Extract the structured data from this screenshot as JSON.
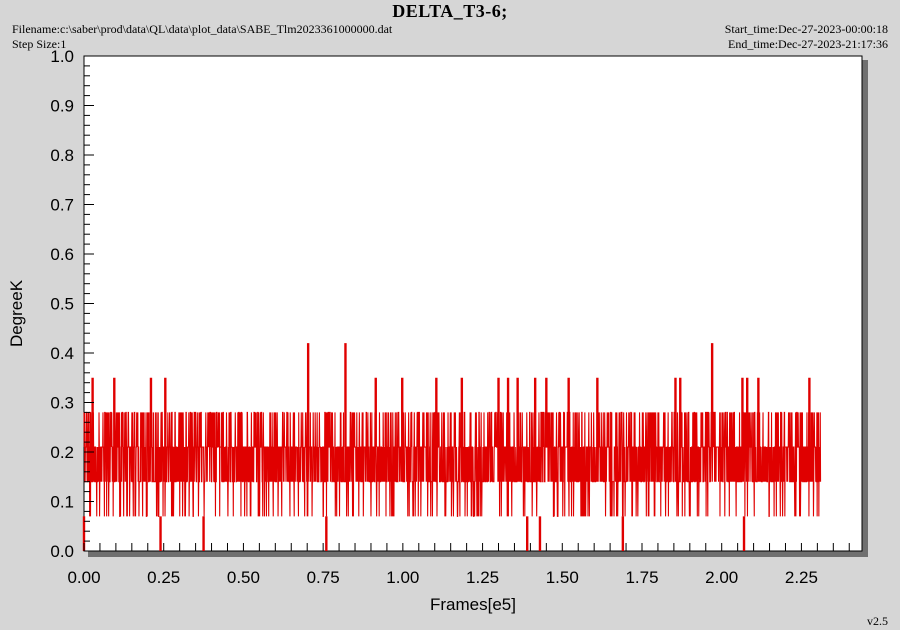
{
  "header": {
    "title": "DELTA_T3-6;",
    "filename": "Filename:c:\\saber\\prod\\data\\QL\\data\\plot_data\\SABE_Tlm2023361000000.dat",
    "step_size": "Step Size:1",
    "start_time": "Start_time:Dec-27-2023-00:00:18",
    "end_time": "End_time:Dec-27-2023-21:17:36",
    "version": "v2.5"
  },
  "colors": {
    "series": "#e00000",
    "plot_bg": "#ffffff",
    "frame_bg": "#d6d6d6",
    "shadow": "#707070"
  },
  "chart_data": {
    "type": "line",
    "title": "DELTA_T3-6;",
    "xlabel": "Frames[e5]",
    "ylabel": "DegreeK",
    "xlim": [
      0,
      2.44
    ],
    "ylim": [
      0,
      1.0
    ],
    "x_ticks": [
      "0.00",
      "0.25",
      "0.50",
      "0.75",
      "1.00",
      "1.25",
      "1.50",
      "1.75",
      "2.00",
      "2.25"
    ],
    "y_ticks": [
      "0.0",
      "0.1",
      "0.2",
      "0.3",
      "0.4",
      "0.5",
      "0.6",
      "0.7",
      "0.8",
      "0.9",
      "1.0"
    ],
    "x_range_of_data": [
      0,
      2.31
    ],
    "series": [
      {
        "levels": [
          0.0,
          0.07,
          0.14,
          0.21,
          0.28,
          0.35,
          0.42
        ],
        "dense_band": [
          0.14,
          0.28
        ],
        "spikes": [
          {
            "x": 0.027,
            "y": 0.35
          },
          {
            "x": 0.095,
            "y": 0.35
          },
          {
            "x": 0.21,
            "y": 0.35
          },
          {
            "x": 0.255,
            "y": 0.35
          },
          {
            "x": 0.703,
            "y": 0.42
          },
          {
            "x": 0.82,
            "y": 0.42
          },
          {
            "x": 0.915,
            "y": 0.35
          },
          {
            "x": 0.998,
            "y": 0.35
          },
          {
            "x": 1.105,
            "y": 0.35
          },
          {
            "x": 1.185,
            "y": 0.35
          },
          {
            "x": 1.3,
            "y": 0.35
          },
          {
            "x": 1.33,
            "y": 0.35
          },
          {
            "x": 1.36,
            "y": 0.35
          },
          {
            "x": 1.415,
            "y": 0.35
          },
          {
            "x": 1.45,
            "y": 0.35
          },
          {
            "x": 1.52,
            "y": 0.35
          },
          {
            "x": 1.61,
            "y": 0.35
          },
          {
            "x": 1.855,
            "y": 0.35
          },
          {
            "x": 1.87,
            "y": 0.35
          },
          {
            "x": 1.97,
            "y": 0.42
          },
          {
            "x": 2.065,
            "y": 0.35
          },
          {
            "x": 2.08,
            "y": 0.35
          },
          {
            "x": 2.115,
            "y": 0.35
          },
          {
            "x": 2.275,
            "y": 0.35
          }
        ],
        "dips": [
          {
            "x": 0.0,
            "y": 0.0
          },
          {
            "x": 0.24,
            "y": 0.0
          },
          {
            "x": 0.375,
            "y": 0.0
          },
          {
            "x": 0.76,
            "y": 0.0
          },
          {
            "x": 1.39,
            "y": 0.0
          },
          {
            "x": 1.43,
            "y": 0.0
          },
          {
            "x": 1.69,
            "y": 0.0
          },
          {
            "x": 2.07,
            "y": 0.0
          }
        ]
      }
    ]
  }
}
